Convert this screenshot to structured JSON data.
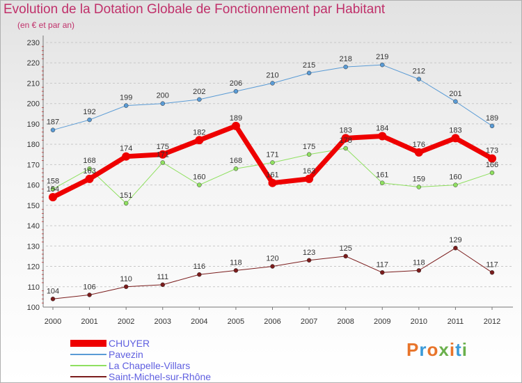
{
  "title": "Evolution de la Dotation Globale de Fonctionnement par Habitant",
  "subtitle": "(en € et par an)",
  "logo": {
    "text": "Proxiti",
    "colors": [
      "#e8742a",
      "#3a9ad9",
      "#e8742a",
      "#6ab04c",
      "#e8742a",
      "#3a9ad9",
      "#6ab04c"
    ]
  },
  "chart_data": {
    "type": "line",
    "title": "Evolution de la Dotation Globale de Fonctionnement par Habitant",
    "subtitle": "(en € et par an)",
    "x": [
      "2000",
      "2001",
      "2002",
      "2003",
      "2004",
      "2005",
      "2006",
      "2007",
      "2008",
      "2009",
      "2010",
      "2011",
      "2012"
    ],
    "ylim": [
      100,
      230
    ],
    "yticks": [
      100,
      110,
      120,
      130,
      140,
      150,
      160,
      170,
      180,
      190,
      200,
      210,
      220,
      230
    ],
    "grid": "horizontal dashed",
    "legend_position": "bottom-left",
    "series": [
      {
        "name": "Saint-Michel-sur-Rhône",
        "color": "#7a1c1c",
        "width": 1,
        "values": [
          104,
          106,
          110,
          111,
          116,
          118,
          120,
          123,
          125,
          117,
          118,
          129,
          117
        ]
      },
      {
        "name": "La Chapelle-Villars",
        "color": "#8fe060",
        "width": 1,
        "values": [
          158,
          168,
          151,
          171,
          160,
          168,
          171,
          175,
          178,
          161,
          159,
          160,
          166
        ]
      },
      {
        "name": "Pavezin",
        "color": "#5a9bd5",
        "width": 1,
        "values": [
          187,
          192,
          199,
          200,
          202,
          206,
          210,
          215,
          218,
          219,
          212,
          201,
          189
        ]
      },
      {
        "name": "CHUYER",
        "color": "#ee0000",
        "width": 7,
        "values": [
          154,
          163,
          174,
          175,
          182,
          189,
          161,
          163,
          183,
          184,
          176,
          183,
          173
        ]
      }
    ],
    "legend_order": [
      "CHUYER",
      "Pavezin",
      "La Chapelle-Villars",
      "Saint-Michel-sur-Rhône"
    ]
  }
}
